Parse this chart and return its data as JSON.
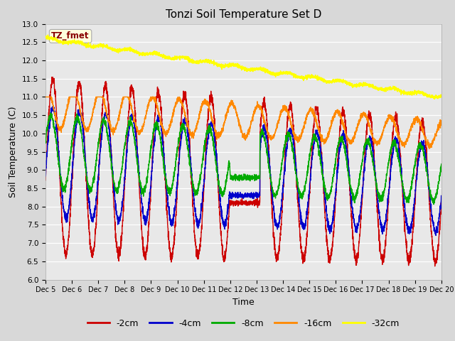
{
  "title": "Tonzi Soil Temperature Set D",
  "xlabel": "Time",
  "ylabel": "Soil Temperature (C)",
  "ylim": [
    6.0,
    13.0
  ],
  "xlim": [
    0,
    360
  ],
  "yticks": [
    6.0,
    6.5,
    7.0,
    7.5,
    8.0,
    8.5,
    9.0,
    9.5,
    10.0,
    10.5,
    11.0,
    11.5,
    12.0,
    12.5,
    13.0
  ],
  "xtick_labels": [
    "Dec 5",
    "Dec 6",
    "Dec 7",
    "Dec 8",
    "Dec 9",
    "Dec 10",
    "Dec 11",
    "Dec 12",
    "Dec 13",
    "Dec 14",
    "Dec 15",
    "Dec 16",
    "Dec 17",
    "Dec 18",
    "Dec 19",
    "Dec 20"
  ],
  "xtick_positions": [
    0,
    24,
    48,
    72,
    96,
    120,
    144,
    168,
    192,
    216,
    240,
    264,
    288,
    312,
    336,
    360
  ],
  "colors": {
    "-2cm": "#cc0000",
    "-4cm": "#0000cc",
    "-8cm": "#00aa00",
    "-16cm": "#ff8800",
    "-32cm": "#ffff00"
  },
  "legend_labels": [
    "-2cm",
    "-4cm",
    "-8cm",
    "-16cm",
    "-32cm"
  ],
  "annotation_text": "TZ_fmet",
  "annotation_color": "#880000",
  "annotation_bg": "#ffffdd",
  "background_color": "#e8e8e8",
  "grid_color": "#ffffff",
  "n_points": 3600,
  "figsize": [
    6.4,
    4.8
  ],
  "dpi": 100
}
